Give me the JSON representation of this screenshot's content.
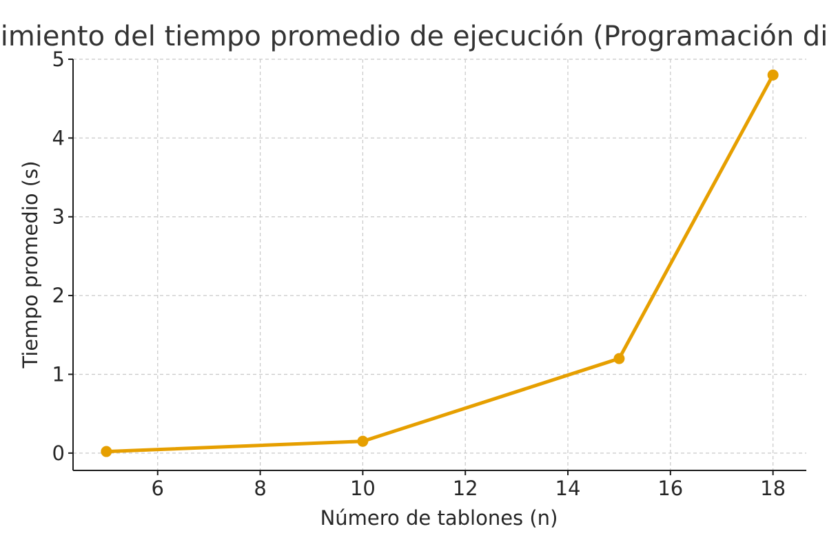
{
  "chart_data": {
    "type": "line",
    "title": "Crecimiento del tiempo promedio de ejecución (Programación dinámica)",
    "xlabel": "Número de tablones (n)",
    "ylabel": "Tiempo promedio (s)",
    "xlim": [
      4.35,
      18.65
    ],
    "ylim": [
      -0.22,
      5.0
    ],
    "xticks": [
      6,
      8,
      10,
      12,
      14,
      16,
      18
    ],
    "yticks": [
      0,
      1,
      2,
      3,
      4,
      5
    ],
    "grid": true,
    "series": [
      {
        "x": [
          5,
          10,
          15,
          18
        ],
        "y": [
          0.02,
          0.15,
          1.2,
          4.8
        ],
        "color": "#e69f00",
        "marker": "circle"
      }
    ]
  }
}
